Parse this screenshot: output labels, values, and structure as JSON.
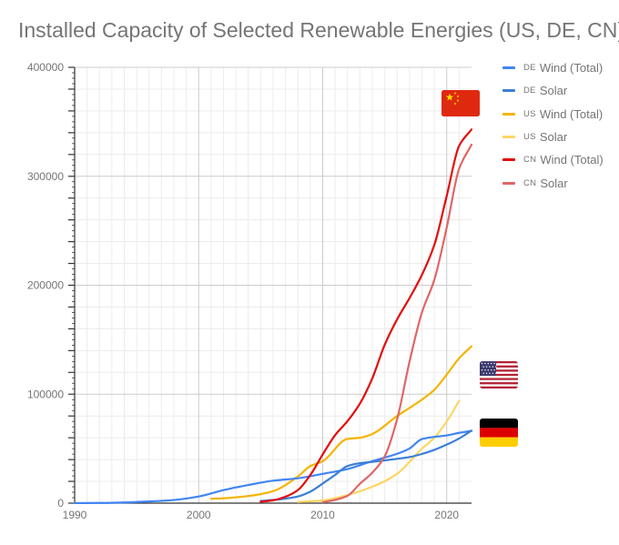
{
  "chart_data": {
    "type": "line",
    "title": "Installed Capacity of Selected Renewable Energies (US, DE, CN)",
    "xlabel": "",
    "ylabel": "",
    "xlim": [
      1990,
      2022
    ],
    "ylim": [
      0,
      400000
    ],
    "x_ticks": [
      {
        "value": 1990,
        "label": "1990"
      },
      {
        "value": 2000,
        "label": "2000"
      },
      {
        "value": 2010,
        "label": "2010"
      },
      {
        "value": 2020,
        "label": "2020"
      }
    ],
    "y_ticks": [
      {
        "value": 0,
        "label": "0"
      },
      {
        "value": 100000,
        "label": "100000"
      },
      {
        "value": 200000,
        "label": "200000"
      },
      {
        "value": 300000,
        "label": "300000"
      },
      {
        "value": 400000,
        "label": "400000"
      }
    ],
    "grid": true,
    "legend_position": "right",
    "series": [
      {
        "name": "Wind (Total)",
        "country_code": "DE",
        "color": "#4285f4",
        "x": [
          1990,
          1992,
          1994,
          1996,
          1998,
          2000,
          2002,
          2004,
          2006,
          2008,
          2010,
          2012,
          2014,
          2016,
          2017,
          2018,
          2019,
          2020,
          2021,
          2022
        ],
        "y": [
          56,
          183,
          618,
          1545,
          2875,
          6095,
          11976,
          16629,
          20622,
          22794,
          26903,
          31307,
          38614,
          45283,
          50169,
          58843,
          60801,
          62184,
          64526,
          66315
        ]
      },
      {
        "name": "Solar",
        "country_code": "DE",
        "color": "#3d7fd6",
        "x": [
          2005,
          2006,
          2007,
          2008,
          2009,
          2010,
          2011,
          2012,
          2013,
          2014,
          2015,
          2016,
          2017,
          2018,
          2019,
          2020,
          2021,
          2022
        ],
        "y": [
          2056,
          2899,
          4170,
          6120,
          10566,
          18006,
          25916,
          34077,
          36710,
          37900,
          39224,
          40679,
          42293,
          45158,
          48912,
          53721,
          59371,
          66500
        ]
      },
      {
        "name": "Wind (Total)",
        "country_code": "US",
        "color": "#f4b400",
        "x": [
          2001,
          2002,
          2004,
          2006,
          2008,
          2009,
          2010,
          2012,
          2013,
          2014,
          2016,
          2018,
          2019,
          2020,
          2021,
          2022
        ],
        "y": [
          4000,
          4500,
          6500,
          11000,
          24500,
          34000,
          38500,
          59000,
          60000,
          63500,
          80000,
          95000,
          104000,
          118000,
          133000,
          144000
        ]
      },
      {
        "name": "Solar",
        "country_code": "US",
        "color": "#fdd663",
        "x": [
          2008,
          2010,
          2012,
          2014,
          2016,
          2018,
          2019,
          2020,
          2021
        ],
        "y": [
          1000,
          2500,
          7500,
          15000,
          27000,
          50000,
          60000,
          75000,
          94000
        ]
      },
      {
        "name": "Wind (Total)",
        "country_code": "CN",
        "color": "#e30c0c",
        "x": [
          2005,
          2006,
          2007,
          2008,
          2009,
          2010,
          2011,
          2012,
          2013,
          2014,
          2015,
          2016,
          2017,
          2018,
          2019,
          2020,
          2021,
          2022
        ],
        "y": [
          1260,
          2600,
          5900,
          12000,
          25800,
          44700,
          62400,
          75300,
          91400,
          114600,
          145400,
          168700,
          188200,
          209500,
          237000,
          282000,
          328000,
          343000
        ]
      },
      {
        "name": "Solar",
        "country_code": "CN",
        "color": "#e06666",
        "x": [
          2010,
          2011,
          2012,
          2013,
          2014,
          2015,
          2016,
          2017,
          2018,
          2019,
          2020,
          2021,
          2022
        ],
        "y": [
          800,
          3000,
          6700,
          17800,
          28000,
          43000,
          77000,
          130000,
          175000,
          205000,
          253000,
          307000,
          329000
        ]
      }
    ]
  },
  "flags": [
    {
      "country_code": "CN",
      "icon": "china-flag-icon"
    },
    {
      "country_code": "US",
      "icon": "usa-flag-icon"
    },
    {
      "country_code": "DE",
      "icon": "germany-flag-icon"
    }
  ],
  "colors": {
    "grid_minor": "#ececec",
    "grid_major": "#cccccc",
    "axis": "#333333",
    "text": "#757575"
  }
}
